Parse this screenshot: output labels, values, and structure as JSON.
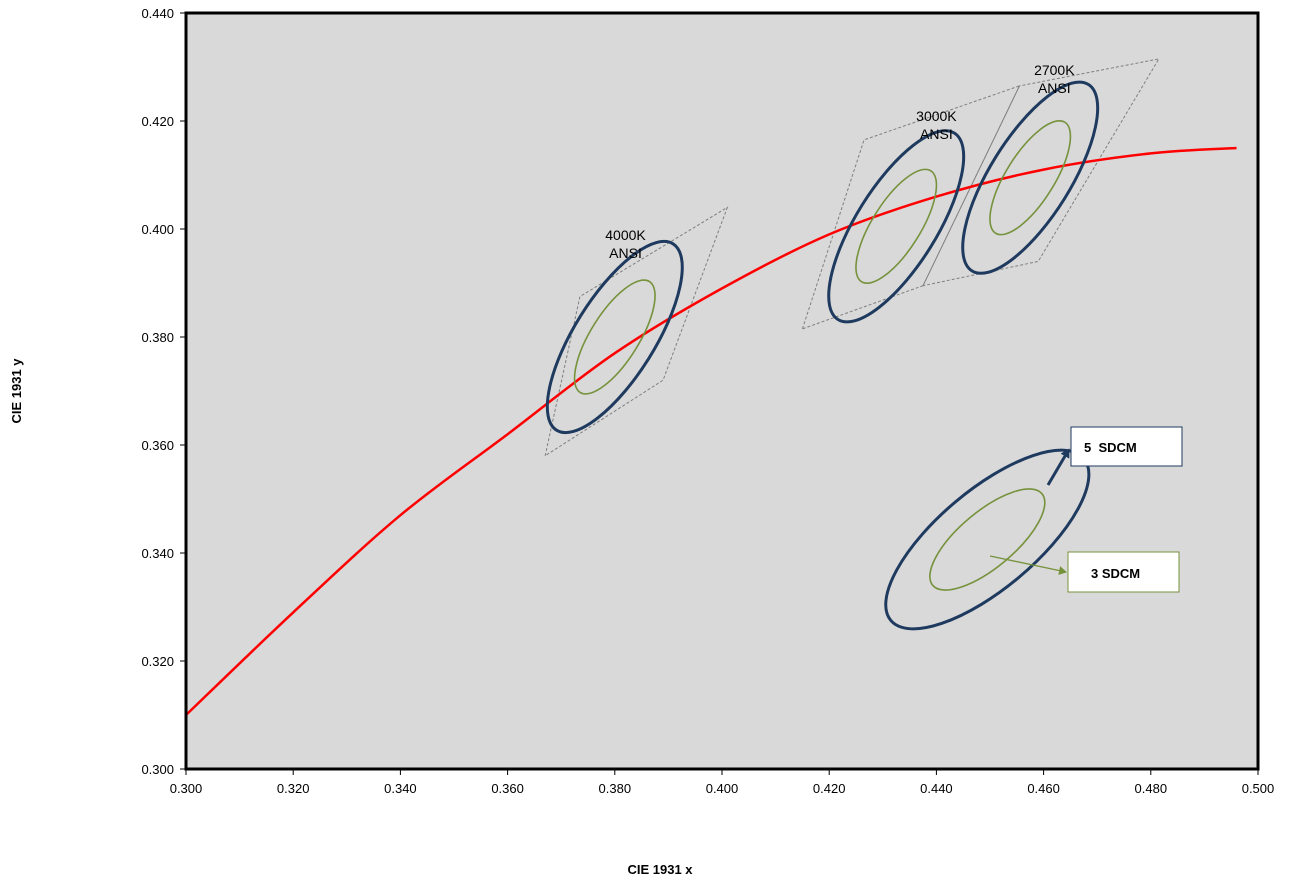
{
  "chart_data": {
    "type": "scatter",
    "xlabel": "CIE 1931 x",
    "ylabel": "CIE 1931 y",
    "xlim": [
      0.3,
      0.5
    ],
    "ylim": [
      0.3,
      0.44
    ],
    "x_ticks": [
      "0.300",
      "0.320",
      "0.340",
      "0.360",
      "0.380",
      "0.400",
      "0.420",
      "0.440",
      "0.460",
      "0.480",
      "0.500"
    ],
    "y_ticks": [
      "0.300",
      "0.320",
      "0.340",
      "0.360",
      "0.380",
      "0.400",
      "0.420",
      "0.440"
    ],
    "grid": false,
    "background_color": "#d9d9d9",
    "colors": {
      "locus": "#ff0000",
      "sdcm5": "#1f3a5f",
      "sdcm3": "#76923c",
      "quad": "#7f7f7f"
    },
    "planckian_locus": {
      "x": [
        0.3,
        0.32,
        0.34,
        0.36,
        0.38,
        0.4,
        0.42,
        0.44,
        0.46,
        0.48,
        0.496
      ],
      "y": [
        0.31,
        0.329,
        0.347,
        0.362,
        0.377,
        0.389,
        0.399,
        0.406,
        0.411,
        0.414,
        0.415
      ]
    },
    "regions": [
      {
        "label_line1": "4000K",
        "label_line2": "ANSI",
        "label_at": [
          0.382,
          0.398
        ],
        "quad": [
          [
            0.367,
            0.358
          ],
          [
            0.3735,
            0.3875
          ],
          [
            0.401,
            0.404
          ],
          [
            0.389,
            0.372
          ]
        ],
        "sdcm5": {
          "cx": 0.38,
          "cy": 0.38,
          "a": 0.0205,
          "b": 0.0075,
          "angle_deg": 58
        },
        "sdcm3": {
          "cx": 0.38,
          "cy": 0.38,
          "a": 0.0122,
          "b": 0.0045,
          "angle_deg": 58
        }
      },
      {
        "label_line1": "3000K",
        "label_line2": "ANSI",
        "label_at": [
          0.44,
          0.42
        ],
        "quad": [
          [
            0.415,
            0.3815
          ],
          [
            0.4265,
            0.4165
          ],
          [
            0.4555,
            0.4265
          ],
          [
            0.4375,
            0.3895
          ]
        ],
        "sdcm5": {
          "cx": 0.4325,
          "cy": 0.4005,
          "a": 0.0205,
          "b": 0.0075,
          "angle_deg": 58
        },
        "sdcm3": {
          "cx": 0.4325,
          "cy": 0.4005,
          "a": 0.0122,
          "b": 0.0045,
          "angle_deg": 58
        }
      },
      {
        "label_line1": "2700K",
        "label_line2": "ANSI",
        "label_at": [
          0.462,
          0.4285
        ],
        "quad": [
          [
            0.4375,
            0.3895
          ],
          [
            0.4555,
            0.4265
          ],
          [
            0.4815,
            0.4315
          ],
          [
            0.459,
            0.394
          ]
        ],
        "sdcm5": {
          "cx": 0.4575,
          "cy": 0.4095,
          "a": 0.0205,
          "b": 0.0075,
          "angle_deg": 58
        },
        "sdcm3": {
          "cx": 0.4575,
          "cy": 0.4095,
          "a": 0.0122,
          "b": 0.0045,
          "angle_deg": 58
        }
      }
    ],
    "legend": {
      "sdcm5_label": "5  SDCM",
      "sdcm3_label": "3 SDCM",
      "sample_center": [
        0.4495,
        0.3425
      ]
    }
  }
}
